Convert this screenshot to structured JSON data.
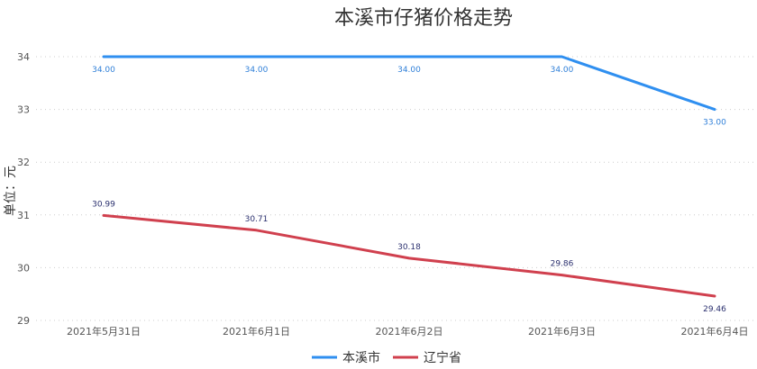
{
  "chart_data": {
    "type": "line",
    "title": "本溪市仔猪价格走势",
    "ylabel": "单位：元",
    "xlabel": "",
    "categories": [
      "2021年5月31日",
      "2021年6月1日",
      "2021年6月2日",
      "2021年6月3日",
      "2021年6月4日"
    ],
    "ylim": [
      29,
      34
    ],
    "yticks": [
      "29",
      "30",
      "31",
      "32",
      "33",
      "34"
    ],
    "grid": true,
    "legend_position": "bottom",
    "series": [
      {
        "name": "本溪市",
        "color": "#2f8ff0",
        "values": [
          34.0,
          34.0,
          34.0,
          34.0,
          33.0
        ],
        "labels": [
          "34.00",
          "34.00",
          "34.00",
          "34.00",
          "33.00"
        ]
      },
      {
        "name": "辽宁省",
        "color": "#d0404e",
        "values": [
          30.99,
          30.71,
          30.18,
          29.86,
          29.46
        ],
        "labels": [
          "30.99",
          "30.71",
          "30.18",
          "29.86",
          "29.46"
        ]
      }
    ]
  }
}
